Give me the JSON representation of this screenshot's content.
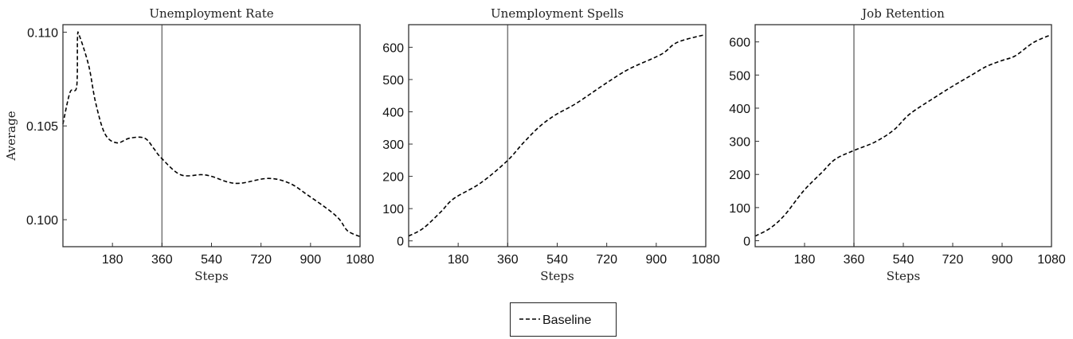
{
  "chart_data": [
    {
      "type": "line",
      "title": "Unemployment Rate",
      "xlabel": "Steps",
      "ylabel": "Average",
      "xlim": [
        0,
        1080
      ],
      "ylim": [
        0.09856,
        0.1104
      ],
      "xticks": [
        180,
        360,
        540,
        720,
        900,
        1080
      ],
      "yticks": [
        0.1,
        0.105,
        0.11
      ],
      "ytick_labels": [
        "0.100",
        "0.105",
        "0.110"
      ],
      "vline": 360,
      "grid": false,
      "series": [
        {
          "name": "Baseline",
          "style": "dashed",
          "color": "#000000",
          "x": [
            0,
            26,
            50,
            53,
            60,
            94,
            118,
            152,
            195,
            243,
            297,
            330,
            357,
            427,
            504,
            543,
            601,
            649,
            746,
            823,
            891,
            968,
            1006,
            1035,
            1080
          ],
          "y": [
            0.1051,
            0.1068,
            0.1071,
            0.1097,
            0.1098,
            0.1082,
            0.1063,
            0.1046,
            0.1041,
            0.10435,
            0.10435,
            0.1038,
            0.1033,
            0.1024,
            0.1024,
            0.1023,
            0.102,
            0.10195,
            0.1022,
            0.10195,
            0.1013,
            0.1005,
            0.1,
            0.0994,
            0.0991
          ]
        }
      ]
    },
    {
      "type": "line",
      "title": "Unemployment Spells",
      "xlabel": "Steps",
      "ylabel": "",
      "xlim": [
        0,
        1080
      ],
      "ylim": [
        -18,
        670
      ],
      "xticks": [
        180,
        360,
        540,
        720,
        900,
        1080
      ],
      "yticks": [
        0,
        100,
        200,
        300,
        400,
        500,
        600
      ],
      "ytick_labels": [
        "0",
        "100",
        "200",
        "300",
        "400",
        "500",
        "600"
      ],
      "vline": 360,
      "grid": false,
      "series": [
        {
          "name": "Baseline",
          "style": "dashed",
          "color": "#000000",
          "x": [
            0,
            53,
            116,
            164,
            261,
            357,
            415,
            473,
            531,
            609,
            715,
            802,
            918,
            976,
            1077
          ],
          "y": [
            15,
            39,
            89,
            131,
            179,
            247,
            302,
            352,
            389,
            426,
            487,
            533,
            578,
            615,
            639
          ]
        }
      ]
    },
    {
      "type": "line",
      "title": "Job Retention",
      "xlabel": "Steps",
      "ylabel": "",
      "xlim": [
        0,
        1080
      ],
      "ylim": [
        -18,
        652
      ],
      "xticks": [
        180,
        360,
        540,
        720,
        900,
        1080
      ],
      "yticks": [
        0,
        100,
        200,
        300,
        400,
        500,
        600
      ],
      "ytick_labels": [
        "0",
        "100",
        "200",
        "300",
        "400",
        "500",
        "600"
      ],
      "vline": 360,
      "grid": false,
      "series": [
        {
          "name": "Baseline",
          "style": "dashed",
          "color": "#000000",
          "x": [
            0,
            55,
            108,
            176,
            243,
            292,
            359,
            437,
            505,
            563,
            650,
            717,
            785,
            843,
            900,
            948,
            1014,
            1077
          ],
          "y": [
            14,
            38,
            78,
            150,
            206,
            246,
            272,
            298,
            334,
            382,
            430,
            465,
            498,
            526,
            544,
            558,
            598,
            621
          ]
        }
      ]
    }
  ],
  "legend": {
    "placement": "bottom-center",
    "entries": [
      {
        "label": "Baseline",
        "style": "dashed"
      }
    ]
  },
  "colors": {
    "line": "#000000",
    "vline": "#777777",
    "frame": "#333333"
  }
}
